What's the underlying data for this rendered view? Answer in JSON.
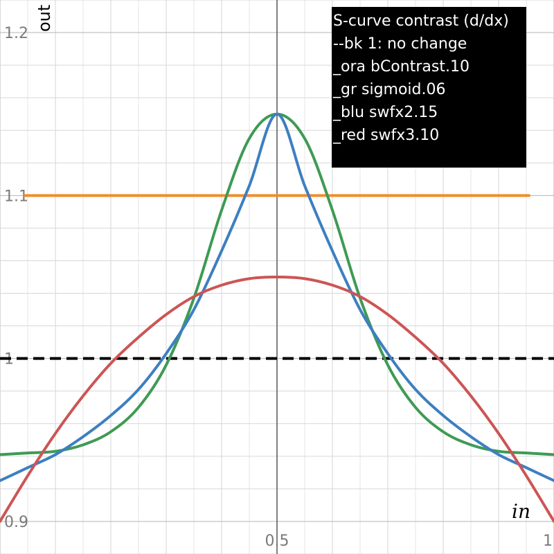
{
  "chart_data": {
    "type": "line",
    "xlabel": "in",
    "ylabel": "out",
    "xlim": [
      0,
      1
    ],
    "ylim": [
      0.88,
      1.22
    ],
    "xticks": [
      0.5,
      1
    ],
    "xtick_labels": [
      "0.5",
      "1"
    ],
    "yticks": [
      0.9,
      1,
      1.1,
      1.2
    ],
    "ytick_labels": [
      "0.9",
      "1",
      "1.1",
      "1.2"
    ],
    "grid": true,
    "legend_position": "top-right",
    "legend_lines": [
      "S-curve contrast (d/dx)",
      "--bk 1: no change",
      "_ora bContrast.10",
      "_gr sigmoid.06",
      "_blu swfx2.15",
      "_red swfx3.10"
    ],
    "series": [
      {
        "color": "#000000",
        "dash": true,
        "x": [
          0,
          1
        ],
        "y": [
          1,
          1
        ]
      },
      {
        "color": "#f28c28",
        "x": [
          0.045,
          0.955
        ],
        "y": [
          1.1,
          1.1
        ]
      },
      {
        "color": "#3f9a54",
        "x": [
          0,
          0.05,
          0.1,
          0.15,
          0.2,
          0.25,
          0.3,
          0.35,
          0.4,
          0.45,
          0.5,
          0.55,
          0.6,
          0.65,
          0.7,
          0.75,
          0.8,
          0.85,
          0.9,
          0.95,
          1
        ],
        "y": [
          0.941,
          0.942,
          0.943,
          0.947,
          0.955,
          0.97,
          0.996,
          1.037,
          1.091,
          1.135,
          1.15,
          1.135,
          1.091,
          1.037,
          0.996,
          0.97,
          0.955,
          0.947,
          0.943,
          0.942,
          0.941
        ]
      },
      {
        "color": "#3d7fc1",
        "x": [
          0,
          0.05,
          0.1,
          0.15,
          0.2,
          0.25,
          0.3,
          0.35,
          0.4,
          0.45,
          0.5,
          0.55,
          0.6,
          0.65,
          0.7,
          0.75,
          0.8,
          0.85,
          0.9,
          0.95,
          1
        ],
        "y": [
          0.925,
          0.933,
          0.941,
          0.952,
          0.965,
          0.981,
          1.003,
          1.03,
          1.066,
          1.106,
          1.15,
          1.106,
          1.066,
          1.03,
          1.003,
          0.981,
          0.965,
          0.952,
          0.941,
          0.933,
          0.925
        ]
      },
      {
        "color": "#cc5555",
        "x": [
          0,
          0.05,
          0.1,
          0.15,
          0.2,
          0.25,
          0.3,
          0.35,
          0.4,
          0.45,
          0.5,
          0.55,
          0.6,
          0.65,
          0.7,
          0.75,
          0.8,
          0.85,
          0.9,
          0.95,
          1
        ],
        "y": [
          0.9,
          0.928,
          0.954,
          0.977,
          0.997,
          1.013,
          1.027,
          1.038,
          1.045,
          1.049,
          1.05,
          1.049,
          1.045,
          1.038,
          1.027,
          1.013,
          0.997,
          0.977,
          0.954,
          0.928,
          0.9
        ]
      }
    ]
  }
}
